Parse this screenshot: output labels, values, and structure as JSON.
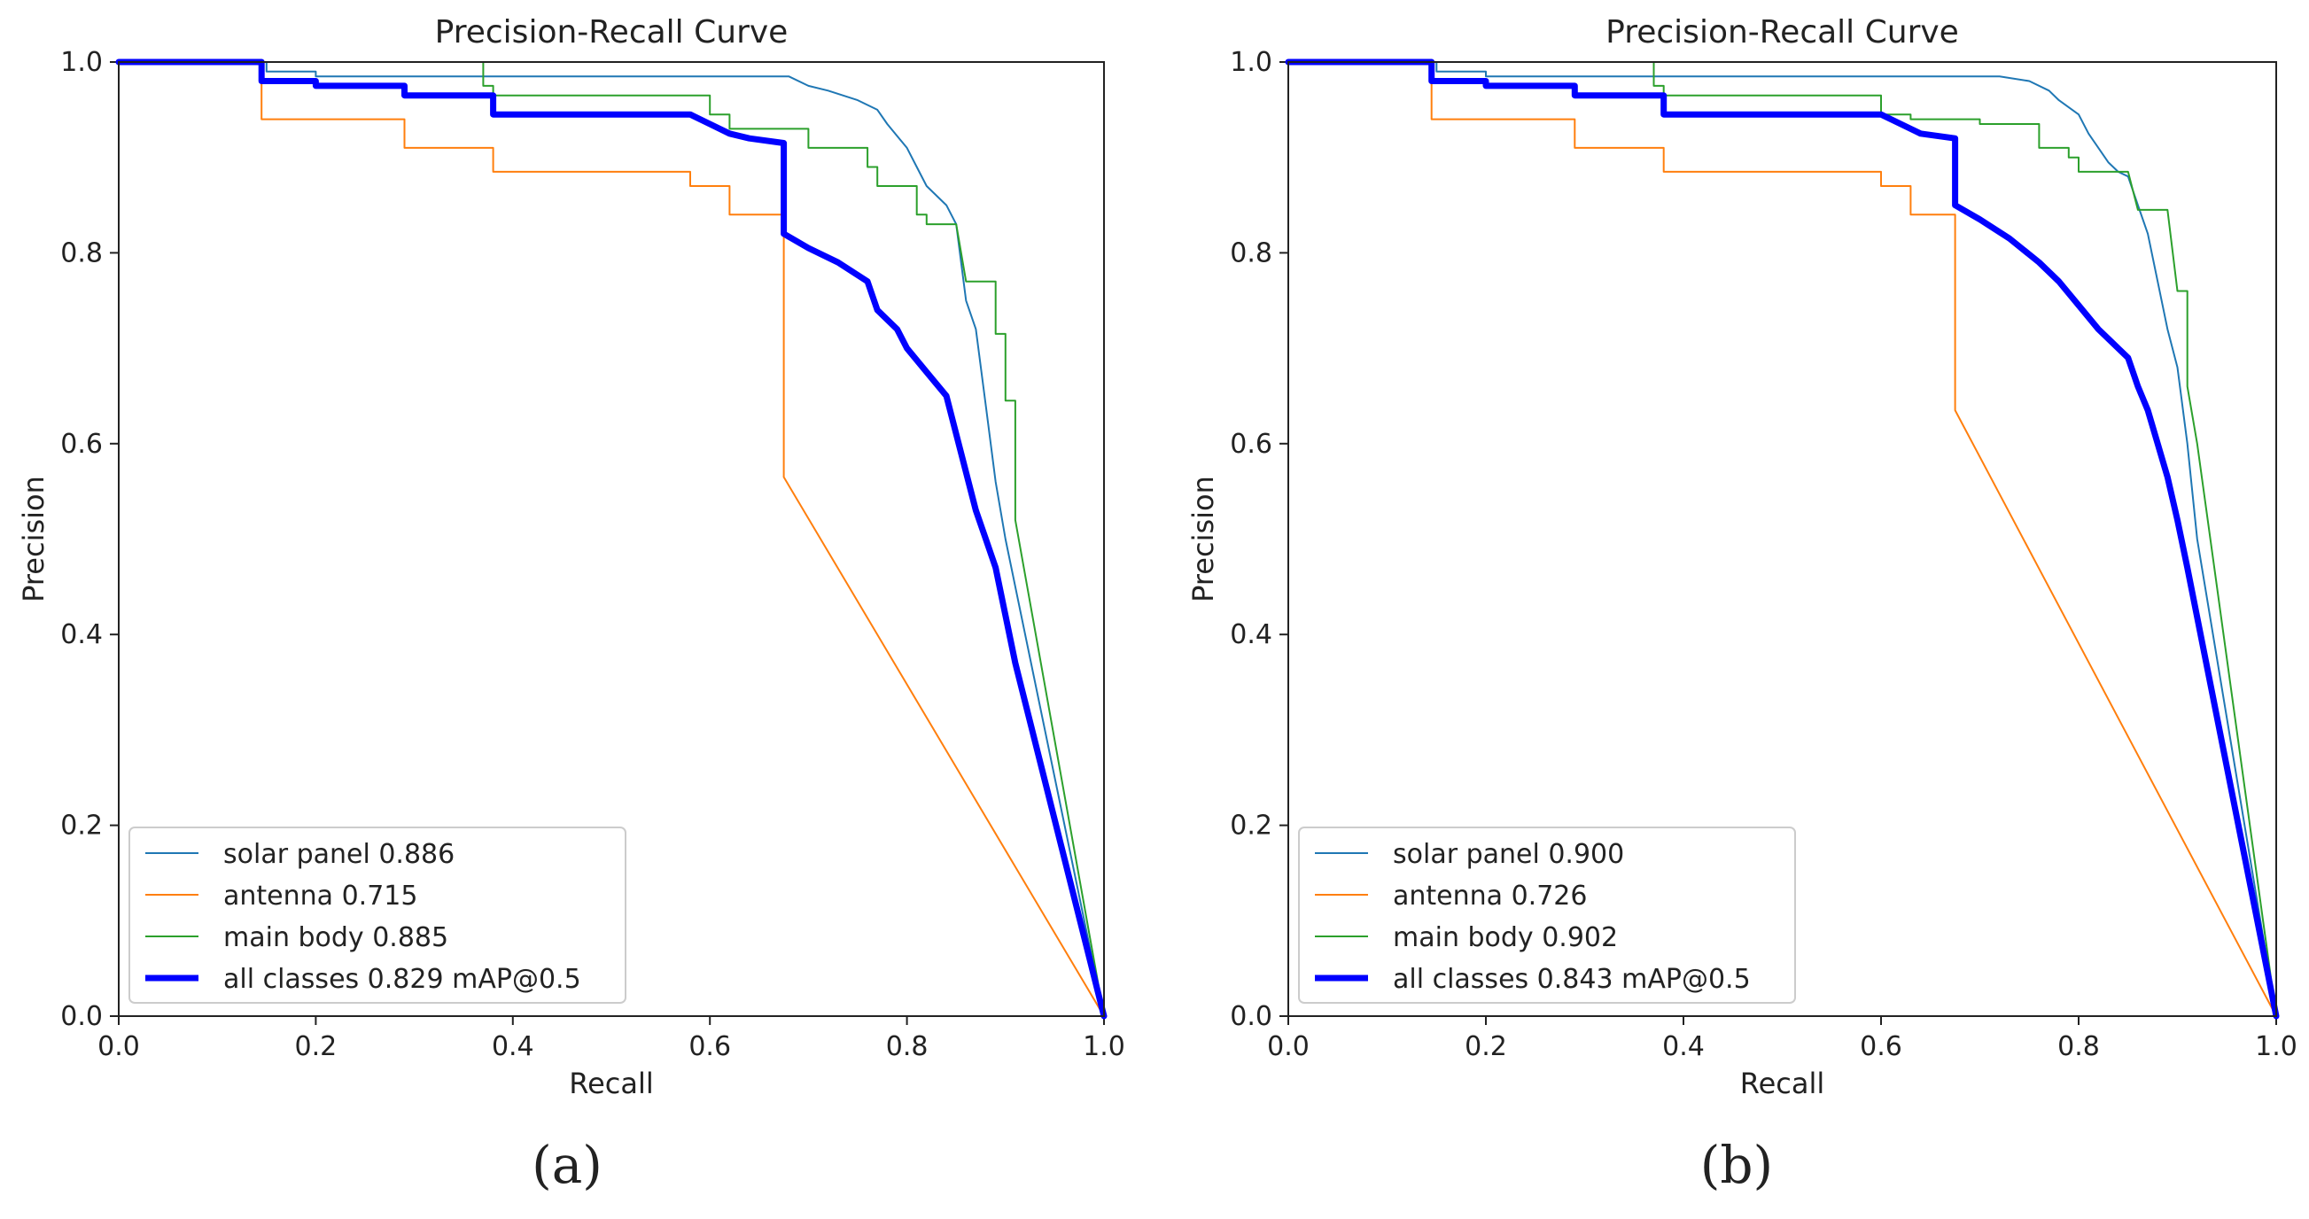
{
  "chart_data": [
    {
      "type": "line",
      "title": "Precision-Recall Curve",
      "xlabel": "Recall",
      "ylabel": "Precision",
      "xlim": [
        0,
        1
      ],
      "ylim": [
        0,
        1
      ],
      "xticks": [
        "0.0",
        "0.2",
        "0.4",
        "0.6",
        "0.8",
        "1.0"
      ],
      "yticks": [
        "0.0",
        "0.2",
        "0.4",
        "0.6",
        "0.8",
        "1.0"
      ],
      "grid": false,
      "legend_position": "lower-left",
      "caption": "(a)",
      "series": [
        {
          "name": "solar panel 0.886",
          "color": "#1f77b4",
          "width": "thin",
          "points": [
            [
              0,
              1
            ],
            [
              0.15,
              1
            ],
            [
              0.15,
              0.99
            ],
            [
              0.2,
              0.99
            ],
            [
              0.2,
              0.985
            ],
            [
              0.4,
              0.985
            ],
            [
              0.6,
              0.985
            ],
            [
              0.68,
              0.985
            ],
            [
              0.7,
              0.975
            ],
            [
              0.72,
              0.97
            ],
            [
              0.75,
              0.96
            ],
            [
              0.77,
              0.95
            ],
            [
              0.78,
              0.935
            ],
            [
              0.8,
              0.91
            ],
            [
              0.81,
              0.89
            ],
            [
              0.82,
              0.87
            ],
            [
              0.84,
              0.85
            ],
            [
              0.85,
              0.83
            ],
            [
              0.86,
              0.75
            ],
            [
              0.87,
              0.72
            ],
            [
              0.88,
              0.64
            ],
            [
              0.89,
              0.56
            ],
            [
              0.9,
              0.5
            ],
            [
              0.91,
              0.45
            ],
            [
              1.0,
              0
            ]
          ]
        },
        {
          "name": "antenna 0.715",
          "color": "#ff7f0e",
          "width": "thin",
          "points": [
            [
              0,
              1
            ],
            [
              0.145,
              1
            ],
            [
              0.145,
              0.94
            ],
            [
              0.29,
              0.94
            ],
            [
              0.29,
              0.91
            ],
            [
              0.38,
              0.91
            ],
            [
              0.38,
              0.885
            ],
            [
              0.58,
              0.885
            ],
            [
              0.58,
              0.87
            ],
            [
              0.62,
              0.87
            ],
            [
              0.62,
              0.84
            ],
            [
              0.675,
              0.84
            ],
            [
              0.675,
              0.565
            ],
            [
              1.0,
              0
            ]
          ]
        },
        {
          "name": "main body 0.885",
          "color": "#2ca02c",
          "width": "thin",
          "points": [
            [
              0,
              1
            ],
            [
              0.37,
              1
            ],
            [
              0.37,
              0.975
            ],
            [
              0.38,
              0.975
            ],
            [
              0.38,
              0.965
            ],
            [
              0.6,
              0.965
            ],
            [
              0.6,
              0.945
            ],
            [
              0.62,
              0.945
            ],
            [
              0.62,
              0.93
            ],
            [
              0.7,
              0.93
            ],
            [
              0.7,
              0.91
            ],
            [
              0.76,
              0.91
            ],
            [
              0.76,
              0.89
            ],
            [
              0.77,
              0.89
            ],
            [
              0.77,
              0.87
            ],
            [
              0.81,
              0.87
            ],
            [
              0.81,
              0.84
            ],
            [
              0.82,
              0.84
            ],
            [
              0.82,
              0.83
            ],
            [
              0.85,
              0.83
            ],
            [
              0.86,
              0.77
            ],
            [
              0.89,
              0.77
            ],
            [
              0.89,
              0.715
            ],
            [
              0.9,
              0.715
            ],
            [
              0.9,
              0.645
            ],
            [
              0.91,
              0.645
            ],
            [
              0.91,
              0.52
            ],
            [
              1.0,
              0
            ]
          ]
        },
        {
          "name": "all classes 0.829 mAP@0.5",
          "color": "#0000ff",
          "width": "thick",
          "points": [
            [
              0,
              1
            ],
            [
              0.145,
              1
            ],
            [
              0.145,
              0.98
            ],
            [
              0.2,
              0.98
            ],
            [
              0.2,
              0.975
            ],
            [
              0.29,
              0.975
            ],
            [
              0.29,
              0.965
            ],
            [
              0.38,
              0.965
            ],
            [
              0.38,
              0.945
            ],
            [
              0.58,
              0.945
            ],
            [
              0.6,
              0.935
            ],
            [
              0.62,
              0.925
            ],
            [
              0.64,
              0.92
            ],
            [
              0.675,
              0.915
            ],
            [
              0.675,
              0.82
            ],
            [
              0.7,
              0.805
            ],
            [
              0.73,
              0.79
            ],
            [
              0.76,
              0.77
            ],
            [
              0.77,
              0.74
            ],
            [
              0.79,
              0.72
            ],
            [
              0.8,
              0.7
            ],
            [
              0.82,
              0.675
            ],
            [
              0.84,
              0.65
            ],
            [
              0.85,
              0.61
            ],
            [
              0.86,
              0.57
            ],
            [
              0.87,
              0.53
            ],
            [
              0.88,
              0.5
            ],
            [
              0.89,
              0.47
            ],
            [
              0.9,
              0.42
            ],
            [
              0.91,
              0.37
            ],
            [
              1.0,
              0
            ]
          ]
        }
      ]
    },
    {
      "type": "line",
      "title": "Precision-Recall Curve",
      "xlabel": "Recall",
      "ylabel": "Precision",
      "xlim": [
        0,
        1
      ],
      "ylim": [
        0,
        1
      ],
      "xticks": [
        "0.0",
        "0.2",
        "0.4",
        "0.6",
        "0.8",
        "1.0"
      ],
      "yticks": [
        "0.0",
        "0.2",
        "0.4",
        "0.6",
        "0.8",
        "1.0"
      ],
      "grid": false,
      "legend_position": "lower-left",
      "caption": "(b)",
      "series": [
        {
          "name": "solar panel 0.900",
          "color": "#1f77b4",
          "width": "thin",
          "points": [
            [
              0,
              1
            ],
            [
              0.15,
              1
            ],
            [
              0.15,
              0.99
            ],
            [
              0.2,
              0.99
            ],
            [
              0.2,
              0.985
            ],
            [
              0.6,
              0.985
            ],
            [
              0.72,
              0.985
            ],
            [
              0.75,
              0.98
            ],
            [
              0.77,
              0.97
            ],
            [
              0.78,
              0.96
            ],
            [
              0.8,
              0.945
            ],
            [
              0.81,
              0.925
            ],
            [
              0.82,
              0.91
            ],
            [
              0.83,
              0.895
            ],
            [
              0.84,
              0.885
            ],
            [
              0.85,
              0.88
            ],
            [
              0.86,
              0.85
            ],
            [
              0.87,
              0.82
            ],
            [
              0.88,
              0.77
            ],
            [
              0.89,
              0.72
            ],
            [
              0.9,
              0.68
            ],
            [
              0.91,
              0.6
            ],
            [
              0.92,
              0.5
            ],
            [
              1.0,
              0
            ]
          ]
        },
        {
          "name": "antenna 0.726",
          "color": "#ff7f0e",
          "width": "thin",
          "points": [
            [
              0,
              1
            ],
            [
              0.145,
              1
            ],
            [
              0.145,
              0.94
            ],
            [
              0.29,
              0.94
            ],
            [
              0.29,
              0.91
            ],
            [
              0.38,
              0.91
            ],
            [
              0.38,
              0.885
            ],
            [
              0.6,
              0.885
            ],
            [
              0.6,
              0.87
            ],
            [
              0.63,
              0.87
            ],
            [
              0.63,
              0.84
            ],
            [
              0.675,
              0.84
            ],
            [
              0.675,
              0.635
            ],
            [
              1.0,
              0
            ]
          ]
        },
        {
          "name": "main body 0.902",
          "color": "#2ca02c",
          "width": "thin",
          "points": [
            [
              0,
              1
            ],
            [
              0.37,
              1
            ],
            [
              0.37,
              0.975
            ],
            [
              0.38,
              0.975
            ],
            [
              0.38,
              0.965
            ],
            [
              0.6,
              0.965
            ],
            [
              0.6,
              0.945
            ],
            [
              0.63,
              0.945
            ],
            [
              0.63,
              0.94
            ],
            [
              0.7,
              0.94
            ],
            [
              0.7,
              0.935
            ],
            [
              0.76,
              0.935
            ],
            [
              0.76,
              0.91
            ],
            [
              0.79,
              0.91
            ],
            [
              0.79,
              0.9
            ],
            [
              0.8,
              0.9
            ],
            [
              0.8,
              0.885
            ],
            [
              0.85,
              0.885
            ],
            [
              0.86,
              0.845
            ],
            [
              0.89,
              0.845
            ],
            [
              0.9,
              0.76
            ],
            [
              0.91,
              0.76
            ],
            [
              0.91,
              0.66
            ],
            [
              0.92,
              0.6
            ],
            [
              1.0,
              0
            ]
          ]
        },
        {
          "name": "all classes 0.843 mAP@0.5",
          "color": "#0000ff",
          "width": "thick",
          "points": [
            [
              0,
              1
            ],
            [
              0.145,
              1
            ],
            [
              0.145,
              0.98
            ],
            [
              0.2,
              0.98
            ],
            [
              0.2,
              0.975
            ],
            [
              0.29,
              0.975
            ],
            [
              0.29,
              0.965
            ],
            [
              0.38,
              0.965
            ],
            [
              0.38,
              0.945
            ],
            [
              0.6,
              0.945
            ],
            [
              0.62,
              0.935
            ],
            [
              0.64,
              0.925
            ],
            [
              0.675,
              0.92
            ],
            [
              0.675,
              0.85
            ],
            [
              0.7,
              0.835
            ],
            [
              0.73,
              0.815
            ],
            [
              0.76,
              0.79
            ],
            [
              0.78,
              0.77
            ],
            [
              0.8,
              0.745
            ],
            [
              0.82,
              0.72
            ],
            [
              0.84,
              0.7
            ],
            [
              0.85,
              0.69
            ],
            [
              0.86,
              0.66
            ],
            [
              0.87,
              0.635
            ],
            [
              0.88,
              0.6
            ],
            [
              0.89,
              0.565
            ],
            [
              0.9,
              0.52
            ],
            [
              0.91,
              0.47
            ],
            [
              1.0,
              0
            ]
          ]
        }
      ]
    }
  ]
}
